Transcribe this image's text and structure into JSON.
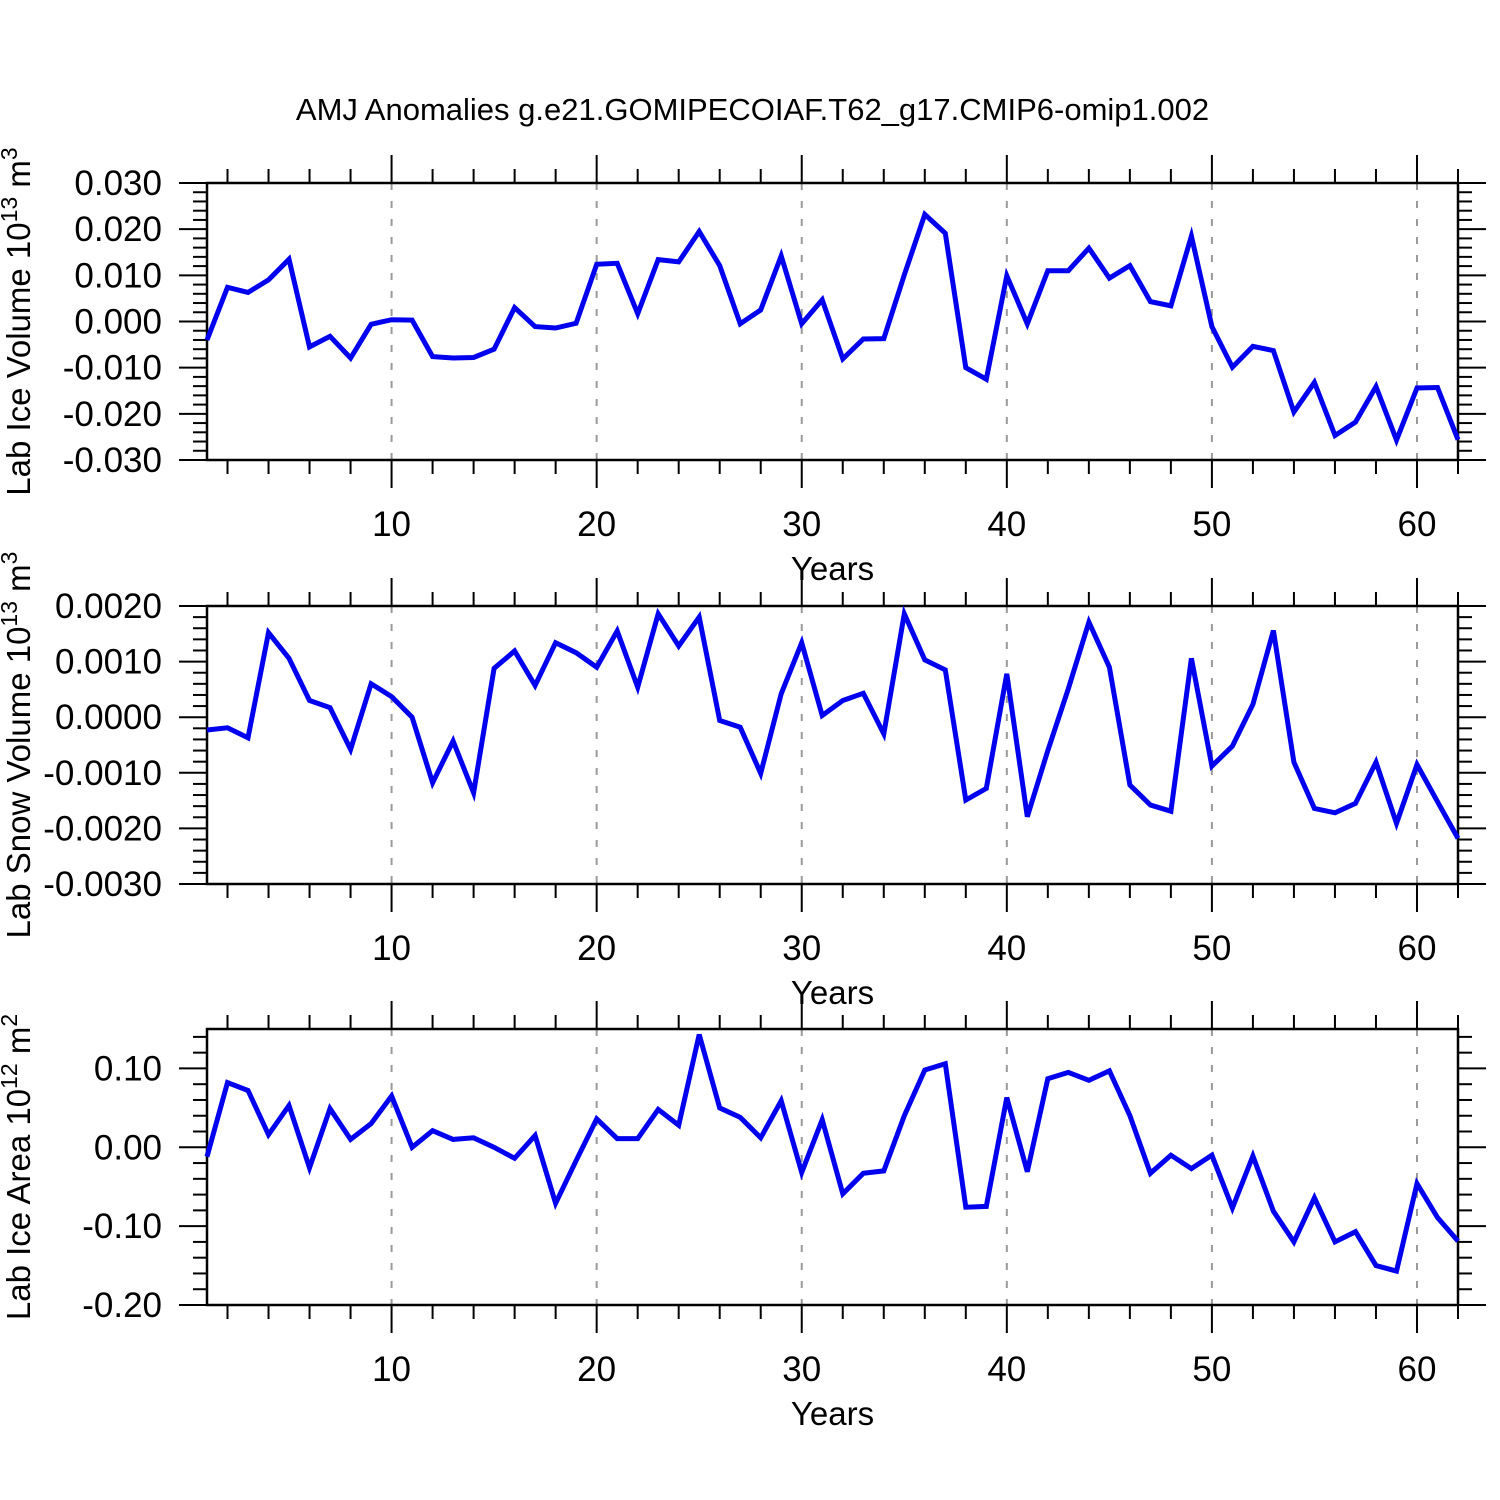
{
  "title": "AMJ Anomalies g.e21.GOMIPECOIAF.T62_g17.CMIP6-omip1.002",
  "colors": {
    "line": "#0000ee",
    "grid": "#9a9a9a",
    "frame": "#000000",
    "text": "#000000"
  },
  "chart_data": [
    {
      "type": "line",
      "name": "lab-ice-volume",
      "xlabel": "Years",
      "ylabel": [
        {
          "t": "Lab Ice Volume 10"
        },
        {
          "t": "13",
          "sup": true
        },
        {
          "t": " m"
        },
        {
          "t": "3",
          "sup": true
        }
      ],
      "xlim": [
        1,
        62
      ],
      "xticks": [
        10,
        20,
        30,
        40,
        50,
        60
      ],
      "xminor_step": 2,
      "ylim": [
        -0.03,
        0.03
      ],
      "yticks": [
        0.03,
        0.02,
        0.01,
        0,
        -0.01,
        -0.02,
        -0.03
      ],
      "yminor_step": 0.002,
      "ytick_decimals": 3,
      "grid": "vertical-dashed",
      "values": [
        -0.004,
        0.0074,
        0.0063,
        0.009,
        0.0135,
        -0.0055,
        -0.0032,
        -0.0079,
        -0.0006,
        0.0004,
        0.0003,
        -0.0076,
        -0.0079,
        -0.0078,
        -0.006,
        0.003,
        -0.0011,
        -0.0014,
        -0.0004,
        0.0124,
        0.0126,
        0.0017,
        0.0134,
        0.0129,
        0.0195,
        0.0121,
        -0.0005,
        0.0025,
        0.0142,
        -0.0005,
        0.0047,
        -0.0081,
        -0.0038,
        -0.0037,
        0.0101,
        0.0232,
        0.0191,
        -0.01,
        -0.0125,
        0.0099,
        -0.0005,
        0.011,
        0.011,
        0.0159,
        0.0094,
        0.0121,
        0.0043,
        0.0034,
        0.0185,
        -0.0011,
        -0.0099,
        -0.0054,
        -0.0063,
        -0.0196,
        -0.0132,
        -0.0247,
        -0.0218,
        -0.0141,
        -0.0257,
        -0.0144,
        -0.0143,
        -0.0256
      ]
    },
    {
      "type": "line",
      "name": "lab-snow-volume",
      "xlabel": "Years",
      "ylabel": [
        {
          "t": "Lab Snow Volume 10"
        },
        {
          "t": "13",
          "sup": true
        },
        {
          "t": " m"
        },
        {
          "t": "3",
          "sup": true
        }
      ],
      "xlim": [
        1,
        62
      ],
      "xticks": [
        10,
        20,
        30,
        40,
        50,
        60
      ],
      "xminor_step": 2,
      "ylim": [
        -0.003,
        0.002
      ],
      "yticks": [
        0.002,
        0.001,
        0,
        -0.001,
        -0.002,
        -0.003
      ],
      "yminor_step": 0.0002,
      "ytick_decimals": 4,
      "grid": "vertical-dashed",
      "values": [
        -0.00023,
        -0.00019,
        -0.00037,
        0.00152,
        0.00106,
        0.0003,
        0.00017,
        -0.00058,
        0.0006,
        0.00037,
        0.0,
        -0.00118,
        -0.00043,
        -0.00136,
        0.00088,
        0.00119,
        0.00057,
        0.00134,
        0.00116,
        0.0009,
        0.00155,
        0.00054,
        0.00186,
        0.00128,
        0.0018,
        -6e-05,
        -0.00018,
        -0.00101,
        0.00042,
        0.00134,
        3e-05,
        0.0003,
        0.00043,
        -0.0003,
        0.00186,
        0.00103,
        0.00085,
        -0.00149,
        -0.00128,
        0.00078,
        -0.00179,
        -0.0006,
        0.00051,
        0.00171,
        0.0009,
        -0.00122,
        -0.00158,
        -0.00169,
        0.00106,
        -0.00088,
        -0.00052,
        0.00023,
        0.00156,
        -0.00081,
        -0.00164,
        -0.00172,
        -0.00155,
        -0.00081,
        -0.00191,
        -0.00085,
        -0.00152,
        -0.00218
      ]
    },
    {
      "type": "line",
      "name": "lab-ice-area",
      "xlabel": "Years",
      "ylabel": [
        {
          "t": "Lab Ice Area 10"
        },
        {
          "t": "12",
          "sup": true
        },
        {
          "t": " m"
        },
        {
          "t": "2",
          "sup": true
        }
      ],
      "xlim": [
        1,
        62
      ],
      "xticks": [
        10,
        20,
        30,
        40,
        50,
        60
      ],
      "xminor_step": 2,
      "ylim": [
        -0.2,
        0.15
      ],
      "yticks": [
        0.1,
        0,
        -0.1,
        -0.2
      ],
      "yminor_step": 0.02,
      "ytick_decimals": 2,
      "grid": "vertical-dashed",
      "values": [
        -0.012,
        0.082,
        0.072,
        0.016,
        0.053,
        -0.026,
        0.049,
        0.01,
        0.03,
        0.065,
        0.0,
        0.021,
        0.01,
        0.012,
        0.0,
        -0.014,
        0.015,
        -0.071,
        -0.017,
        0.036,
        0.011,
        0.011,
        0.048,
        0.028,
        0.143,
        0.05,
        0.038,
        0.012,
        0.059,
        -0.032,
        0.035,
        -0.059,
        -0.033,
        -0.03,
        0.04,
        0.098,
        0.106,
        -0.076,
        -0.075,
        0.063,
        -0.031,
        0.087,
        0.095,
        0.085,
        0.097,
        0.04,
        -0.033,
        -0.01,
        -0.027,
        -0.01,
        -0.077,
        -0.011,
        -0.081,
        -0.12,
        -0.064,
        -0.12,
        -0.107,
        -0.15,
        -0.157,
        -0.046,
        -0.089,
        -0.119
      ]
    }
  ]
}
